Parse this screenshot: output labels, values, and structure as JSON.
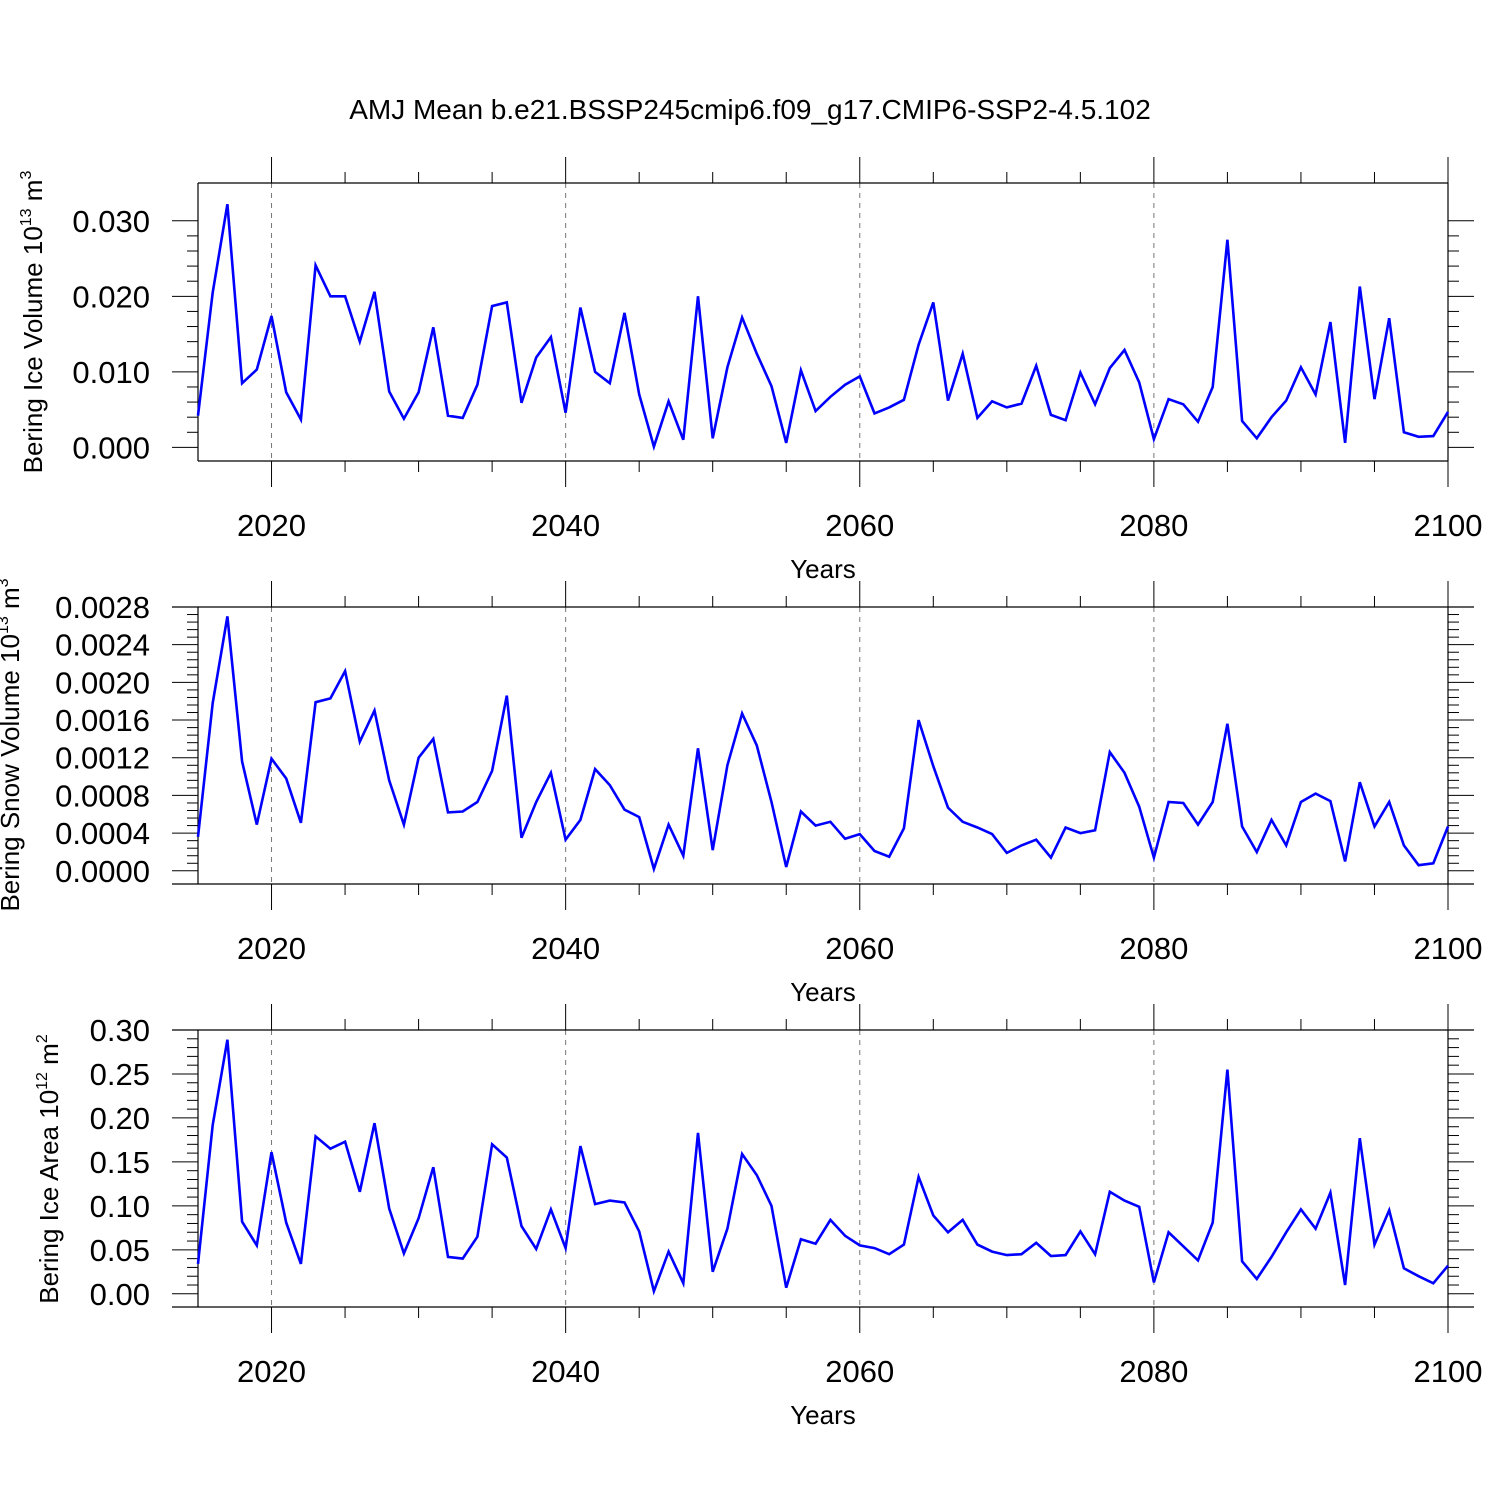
{
  "title": "AMJ Mean b.e21.BSSP245cmip6.f09_g17.CMIP6-SSP2-4.5.102",
  "line_color": "#0000ff",
  "chart_data": [
    {
      "type": "line",
      "id": "ice-volume",
      "ylabel_main": "Bering Ice Volume 10",
      "ylabel_exp": "13",
      "ylabel_unit": "m",
      "ylabel_unit_exp": "3",
      "xlabel": "Years",
      "xlim": [
        2015,
        2100
      ],
      "ylim": [
        -0.0018,
        0.035
      ],
      "xticks": [
        2020,
        2040,
        2060,
        2080,
        2100
      ],
      "xtick_labels": [
        "2020",
        "2040",
        "2060",
        "2080",
        "2100"
      ],
      "yticks": [
        0,
        0.01,
        0.02,
        0.03
      ],
      "ytick_labels": [
        "0.000",
        "0.010",
        "0.020",
        "0.030"
      ],
      "x": [
        2015,
        2016,
        2017,
        2018,
        2019,
        2020,
        2021,
        2022,
        2023,
        2024,
        2025,
        2026,
        2027,
        2028,
        2029,
        2030,
        2031,
        2032,
        2033,
        2034,
        2035,
        2036,
        2037,
        2038,
        2039,
        2040,
        2041,
        2042,
        2043,
        2044,
        2045,
        2046,
        2047,
        2048,
        2049,
        2050,
        2051,
        2052,
        2053,
        2054,
        2055,
        2056,
        2057,
        2058,
        2059,
        2060,
        2061,
        2062,
        2063,
        2064,
        2065,
        2066,
        2067,
        2068,
        2069,
        2070,
        2071,
        2072,
        2073,
        2074,
        2075,
        2076,
        2077,
        2078,
        2079,
        2080,
        2081,
        2082,
        2083,
        2084,
        2085,
        2086,
        2087,
        2088,
        2089,
        2090,
        2091,
        2092,
        2093,
        2094,
        2095,
        2096,
        2097,
        2098,
        2099,
        2100
      ],
      "series": [
        {
          "name": "Bering Ice Volume",
          "values": [
            0.0042,
            0.0205,
            0.0322,
            0.0085,
            0.0103,
            0.0174,
            0.0073,
            0.0037,
            0.0241,
            0.02,
            0.02,
            0.014,
            0.0206,
            0.0074,
            0.0038,
            0.0073,
            0.0159,
            0.0042,
            0.0039,
            0.0083,
            0.0187,
            0.0192,
            0.0059,
            0.0119,
            0.0146,
            0.0046,
            0.0185,
            0.01,
            0.0085,
            0.0178,
            0.007,
            0.0001,
            0.0061,
            0.001,
            0.02,
            0.0012,
            0.0106,
            0.0172,
            0.0124,
            0.0081,
            0.0006,
            0.0102,
            0.0048,
            0.0067,
            0.0083,
            0.0094,
            0.0045,
            0.0053,
            0.0063,
            0.0136,
            0.0192,
            0.0062,
            0.0124,
            0.0039,
            0.0061,
            0.0053,
            0.0058,
            0.0108,
            0.0043,
            0.0036,
            0.0099,
            0.0057,
            0.0105,
            0.0129,
            0.0086,
            0.0011,
            0.0064,
            0.0057,
            0.0034,
            0.008,
            0.0275,
            0.0035,
            0.0012,
            0.004,
            0.0062,
            0.0106,
            0.007,
            0.0166,
            0.0006,
            0.0213,
            0.0064,
            0.0171,
            0.002,
            0.0014,
            0.0015,
            0.0047
          ]
        }
      ]
    },
    {
      "type": "line",
      "id": "snow-volume",
      "ylabel_main": "Bering Snow Volume 10",
      "ylabel_exp": "13",
      "ylabel_unit": "m",
      "ylabel_unit_exp": "3",
      "xlabel": "Years",
      "xlim": [
        2015,
        2100
      ],
      "ylim": [
        -0.00014,
        0.0028
      ],
      "xticks": [
        2020,
        2040,
        2060,
        2080,
        2100
      ],
      "xtick_labels": [
        "2020",
        "2040",
        "2060",
        "2080",
        "2100"
      ],
      "yticks": [
        0,
        0.0004,
        0.0008,
        0.0012,
        0.0016,
        0.002,
        0.0024,
        0.0028
      ],
      "ytick_labels": [
        "0.0000",
        "0.0004",
        "0.0008",
        "0.0012",
        "0.0016",
        "0.0020",
        "0.0024",
        "0.0028"
      ],
      "x": [
        2015,
        2016,
        2017,
        2018,
        2019,
        2020,
        2021,
        2022,
        2023,
        2024,
        2025,
        2026,
        2027,
        2028,
        2029,
        2030,
        2031,
        2032,
        2033,
        2034,
        2035,
        2036,
        2037,
        2038,
        2039,
        2040,
        2041,
        2042,
        2043,
        2044,
        2045,
        2046,
        2047,
        2048,
        2049,
        2050,
        2051,
        2052,
        2053,
        2054,
        2055,
        2056,
        2057,
        2058,
        2059,
        2060,
        2061,
        2062,
        2063,
        2064,
        2065,
        2066,
        2067,
        2068,
        2069,
        2070,
        2071,
        2072,
        2073,
        2074,
        2075,
        2076,
        2077,
        2078,
        2079,
        2080,
        2081,
        2082,
        2083,
        2084,
        2085,
        2086,
        2087,
        2088,
        2089,
        2090,
        2091,
        2092,
        2093,
        2094,
        2095,
        2096,
        2097,
        2098,
        2099,
        2100
      ],
      "series": [
        {
          "name": "Bering Snow Volume",
          "values": [
            0.00036,
            0.00178,
            0.0027,
            0.00116,
            0.00049,
            0.00119,
            0.00098,
            0.00051,
            0.00179,
            0.00183,
            0.00212,
            0.00137,
            0.0017,
            0.00096,
            0.00049,
            0.0012,
            0.0014,
            0.00062,
            0.00063,
            0.00073,
            0.00106,
            0.00186,
            0.00035,
            0.00073,
            0.00104,
            0.00033,
            0.00054,
            0.00108,
            0.00091,
            0.00065,
            0.00057,
            2e-05,
            0.00049,
            0.00016,
            0.0013,
            0.00022,
            0.00112,
            0.00167,
            0.00133,
            0.00073,
            4e-05,
            0.00063,
            0.00048,
            0.00052,
            0.00034,
            0.00039,
            0.00021,
            0.00015,
            0.00045,
            0.0016,
            0.00111,
            0.00067,
            0.00052,
            0.00046,
            0.00039,
            0.00019,
            0.00027,
            0.00033,
            0.00014,
            0.00046,
            0.0004,
            0.00043,
            0.00126,
            0.00104,
            0.00068,
            0.00014,
            0.00073,
            0.00072,
            0.00049,
            0.00073,
            0.00156,
            0.00047,
            0.0002,
            0.00054,
            0.00027,
            0.00073,
            0.00082,
            0.00074,
            0.0001,
            0.00094,
            0.00047,
            0.00073,
            0.00027,
            6e-05,
            8e-05,
            0.00047
          ]
        }
      ]
    },
    {
      "type": "line",
      "id": "ice-area",
      "ylabel_main": "Bering Ice Area 10",
      "ylabel_exp": "12",
      "ylabel_unit": "m",
      "ylabel_unit_exp": "2",
      "xlabel": "Years",
      "xlim": [
        2015,
        2100
      ],
      "ylim": [
        -0.015,
        0.3
      ],
      "xticks": [
        2020,
        2040,
        2060,
        2080,
        2100
      ],
      "xtick_labels": [
        "2020",
        "2040",
        "2060",
        "2080",
        "2100"
      ],
      "yticks": [
        0,
        0.05,
        0.1,
        0.15,
        0.2,
        0.25,
        0.3
      ],
      "ytick_labels": [
        "0.00",
        "0.05",
        "0.10",
        "0.15",
        "0.20",
        "0.25",
        "0.30"
      ],
      "x": [
        2015,
        2016,
        2017,
        2018,
        2019,
        2020,
        2021,
        2022,
        2023,
        2024,
        2025,
        2026,
        2027,
        2028,
        2029,
        2030,
        2031,
        2032,
        2033,
        2034,
        2035,
        2036,
        2037,
        2038,
        2039,
        2040,
        2041,
        2042,
        2043,
        2044,
        2045,
        2046,
        2047,
        2048,
        2049,
        2050,
        2051,
        2052,
        2053,
        2054,
        2055,
        2056,
        2057,
        2058,
        2059,
        2060,
        2061,
        2062,
        2063,
        2064,
        2065,
        2066,
        2067,
        2068,
        2069,
        2070,
        2071,
        2072,
        2073,
        2074,
        2075,
        2076,
        2077,
        2078,
        2079,
        2080,
        2081,
        2082,
        2083,
        2084,
        2085,
        2086,
        2087,
        2088,
        2089,
        2090,
        2091,
        2092,
        2093,
        2094,
        2095,
        2096,
        2097,
        2098,
        2099,
        2100
      ],
      "series": [
        {
          "name": "Bering Ice Area",
          "values": [
            0.034,
            0.192,
            0.289,
            0.082,
            0.055,
            0.161,
            0.081,
            0.034,
            0.179,
            0.165,
            0.173,
            0.116,
            0.194,
            0.097,
            0.046,
            0.086,
            0.144,
            0.042,
            0.04,
            0.065,
            0.17,
            0.155,
            0.077,
            0.051,
            0.096,
            0.052,
            0.168,
            0.102,
            0.106,
            0.104,
            0.071,
            0.003,
            0.048,
            0.012,
            0.183,
            0.025,
            0.074,
            0.159,
            0.135,
            0.1,
            0.007,
            0.062,
            0.057,
            0.084,
            0.066,
            0.055,
            0.052,
            0.045,
            0.056,
            0.133,
            0.089,
            0.07,
            0.084,
            0.056,
            0.048,
            0.044,
            0.045,
            0.058,
            0.043,
            0.044,
            0.071,
            0.045,
            0.116,
            0.106,
            0.099,
            0.013,
            0.07,
            0.054,
            0.038,
            0.081,
            0.255,
            0.037,
            0.017,
            0.042,
            0.07,
            0.096,
            0.074,
            0.115,
            0.01,
            0.177,
            0.056,
            0.095,
            0.029,
            0.02,
            0.012,
            0.032
          ]
        }
      ]
    }
  ]
}
